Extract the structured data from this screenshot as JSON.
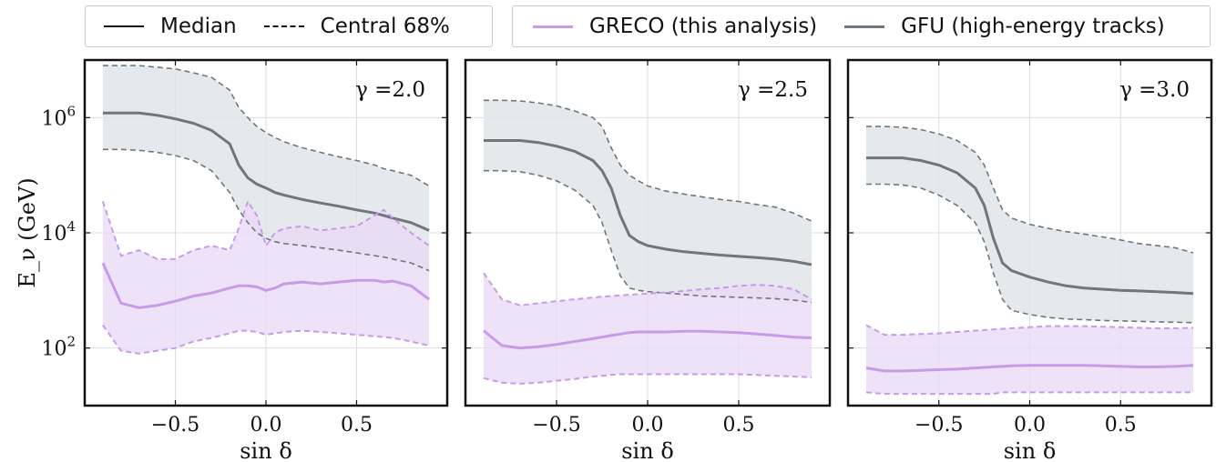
{
  "legend": {
    "style_items": [
      {
        "label": "Median",
        "dash": "solid"
      },
      {
        "label": "Central 68%",
        "dash": "dashed"
      }
    ],
    "data_items": [
      {
        "label": "GRECO (this analysis)",
        "color": "#c79be9"
      },
      {
        "label": "GFU (high-energy tracks)",
        "color": "#6f767e"
      }
    ]
  },
  "colors": {
    "greco": "#c79be9",
    "greco_fill": "#e8d8f6",
    "gfu": "#6f767e",
    "gfu_fill": "#e2e5e8",
    "grid": "#dddddd"
  },
  "chart_data": [
    {
      "type": "area",
      "annotation": "γ =2.0",
      "xlabel": "sin δ",
      "ylabel": "E_ν (GeV)",
      "xlim": [
        -1.0,
        1.0
      ],
      "ylim_log10": [
        1.0,
        7.0
      ],
      "xticks": [
        -0.5,
        0.0,
        0.5
      ],
      "xtick_labels": [
        "−0.5",
        "0.0",
        "0.5"
      ],
      "yticks_log10": [
        2,
        4,
        6
      ],
      "yscale": "log",
      "grid": true,
      "x": [
        -0.9,
        -0.8,
        -0.7,
        -0.6,
        -0.5,
        -0.4,
        -0.3,
        -0.2,
        -0.15,
        -0.1,
        -0.05,
        0.0,
        0.05,
        0.1,
        0.2,
        0.3,
        0.4,
        0.5,
        0.6,
        0.65,
        0.7,
        0.8,
        0.9
      ],
      "series": [
        {
          "name": "GFU (high-energy tracks)",
          "median": [
            1200000,
            1200000,
            1200000,
            1100000,
            950000,
            800000,
            600000,
            350000,
            150000,
            90000,
            70000,
            60000,
            50000,
            45000,
            38000,
            33000,
            29000,
            25000,
            22000,
            20000,
            18000,
            15000,
            11000
          ],
          "lower": [
            280000,
            280000,
            270000,
            250000,
            220000,
            180000,
            120000,
            50000,
            25000,
            15000,
            10000,
            8000,
            7000,
            6500,
            6000,
            5500,
            5000,
            4500,
            4000,
            3800,
            3500,
            3000,
            2200
          ],
          "upper": [
            8000000,
            8000000,
            8000000,
            7500000,
            7000000,
            6000000,
            5000000,
            3000000,
            1500000,
            1000000,
            700000,
            550000,
            450000,
            380000,
            300000,
            250000,
            210000,
            180000,
            150000,
            130000,
            120000,
            100000,
            65000
          ]
        },
        {
          "name": "GRECO (this analysis)",
          "median": [
            3000,
            600,
            500,
            550,
            650,
            800,
            900,
            1100,
            1200,
            1200,
            1150,
            1000,
            1100,
            1300,
            1400,
            1300,
            1400,
            1500,
            1500,
            1400,
            1450,
            1200,
            700
          ],
          "lower": [
            250,
            90,
            80,
            90,
            100,
            130,
            150,
            180,
            200,
            200,
            190,
            170,
            180,
            190,
            200,
            190,
            180,
            170,
            160,
            155,
            150,
            130,
            110
          ],
          "upper": [
            35000,
            4000,
            5000,
            3500,
            3500,
            5000,
            6000,
            5000,
            12000,
            35000,
            20000,
            6000,
            10000,
            12000,
            13000,
            11000,
            12000,
            13000,
            20000,
            25000,
            18000,
            10000,
            6000
          ]
        }
      ]
    },
    {
      "type": "area",
      "annotation": "γ =2.5",
      "xlabel": "sin δ",
      "ylabel": "",
      "xlim": [
        -1.0,
        1.0
      ],
      "ylim_log10": [
        1.0,
        7.0
      ],
      "xticks": [
        -0.5,
        0.0,
        0.5
      ],
      "xtick_labels": [
        "−0.5",
        "0.0",
        "0.5"
      ],
      "yticks_log10": [
        2,
        4,
        6
      ],
      "yscale": "log",
      "grid": true,
      "x": [
        -0.9,
        -0.8,
        -0.7,
        -0.6,
        -0.5,
        -0.4,
        -0.3,
        -0.25,
        -0.2,
        -0.15,
        -0.1,
        -0.05,
        0.0,
        0.1,
        0.2,
        0.3,
        0.4,
        0.5,
        0.6,
        0.7,
        0.8,
        0.9
      ],
      "series": [
        {
          "name": "GFU (high-energy tracks)",
          "median": [
            400000,
            400000,
            400000,
            370000,
            320000,
            260000,
            180000,
            120000,
            60000,
            20000,
            9000,
            7000,
            6000,
            5200,
            4700,
            4400,
            4100,
            3900,
            3700,
            3500,
            3200,
            2800
          ],
          "lower": [
            120000,
            120000,
            115000,
            100000,
            80000,
            55000,
            30000,
            15000,
            5000,
            1800,
            1100,
            1000,
            950,
            900,
            850,
            800,
            780,
            760,
            740,
            720,
            680,
            620
          ],
          "upper": [
            2000000,
            2000000,
            1950000,
            1800000,
            1600000,
            1300000,
            1000000,
            700000,
            300000,
            150000,
            100000,
            80000,
            65000,
            53000,
            47000,
            42000,
            38000,
            35000,
            31000,
            28000,
            22000,
            16000
          ]
        },
        {
          "name": "GRECO (this analysis)",
          "median": [
            200,
            110,
            100,
            105,
            115,
            130,
            145,
            155,
            165,
            175,
            185,
            190,
            190,
            190,
            195,
            195,
            190,
            185,
            175,
            165,
            155,
            150
          ],
          "lower": [
            30,
            25,
            24,
            25,
            27,
            29,
            32,
            33,
            34,
            35,
            35,
            35,
            35,
            35,
            35,
            35,
            35,
            35,
            34,
            33,
            32,
            31
          ],
          "upper": [
            2000,
            700,
            550,
            600,
            650,
            700,
            750,
            780,
            800,
            820,
            840,
            860,
            880,
            920,
            980,
            1050,
            1100,
            1200,
            1250,
            1200,
            1050,
            700
          ]
        }
      ]
    },
    {
      "type": "area",
      "annotation": "γ =3.0",
      "xlabel": "sin δ",
      "ylabel": "",
      "xlim": [
        -1.0,
        1.0
      ],
      "ylim_log10": [
        1.0,
        7.0
      ],
      "xticks": [
        -0.5,
        0.0,
        0.5
      ],
      "xtick_labels": [
        "−0.5",
        "0.0",
        "0.5"
      ],
      "yticks_log10": [
        2,
        4,
        6
      ],
      "yscale": "log",
      "grid": true,
      "x": [
        -0.9,
        -0.8,
        -0.7,
        -0.6,
        -0.5,
        -0.4,
        -0.3,
        -0.25,
        -0.2,
        -0.15,
        -0.1,
        0.0,
        0.1,
        0.2,
        0.3,
        0.4,
        0.5,
        0.6,
        0.7,
        0.8,
        0.9
      ],
      "series": [
        {
          "name": "GFU (high-energy tracks)",
          "median": [
            200000,
            200000,
            200000,
            180000,
            150000,
            110000,
            60000,
            30000,
            8000,
            3000,
            2200,
            1700,
            1400,
            1200,
            1100,
            1050,
            1000,
            980,
            950,
            920,
            880
          ],
          "lower": [
            70000,
            70000,
            68000,
            60000,
            45000,
            30000,
            15000,
            7000,
            2000,
            700,
            450,
            380,
            340,
            320,
            310,
            300,
            295,
            290,
            285,
            280,
            275
          ],
          "upper": [
            700000,
            700000,
            680000,
            620000,
            520000,
            400000,
            250000,
            150000,
            60000,
            25000,
            18000,
            14000,
            12000,
            10500,
            9500,
            8500,
            7500,
            6500,
            6000,
            5500,
            4500
          ]
        },
        {
          "name": "GRECO (this analysis)",
          "median": [
            45,
            40,
            40,
            41,
            42,
            43,
            45,
            46,
            47,
            48,
            49,
            50,
            50,
            50,
            50,
            49,
            48,
            47,
            47,
            48,
            50
          ],
          "lower": [
            17,
            16,
            16,
            16,
            16,
            16,
            16,
            16,
            16,
            17,
            17,
            17,
            17,
            17,
            17,
            17,
            17,
            17,
            17,
            17,
            17
          ],
          "upper": [
            250,
            170,
            170,
            175,
            180,
            190,
            200,
            205,
            210,
            215,
            220,
            230,
            240,
            240,
            240,
            235,
            230,
            225,
            220,
            220,
            225
          ]
        }
      ]
    }
  ]
}
